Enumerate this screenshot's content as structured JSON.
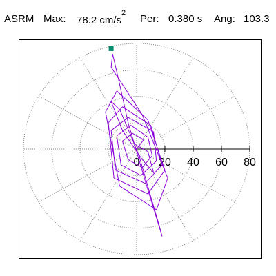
{
  "header": {
    "label": "ASRM",
    "max_label": "Max:",
    "max_value": "78.2 cm/s",
    "max_exp": "2",
    "per_label": "Per:",
    "per_value": "0.380 s",
    "ang_label": "Ang:",
    "ang_value": "103.3"
  },
  "chart_data": {
    "type": "scatter",
    "subtype": "polar-orbit",
    "title": "",
    "units": "cm/s2",
    "r_ticks": [
      0,
      20,
      40,
      60,
      80
    ],
    "r_tick_labels": [
      "0",
      "20",
      "40",
      "60",
      "80"
    ],
    "rmax": 80,
    "ring_count": 4,
    "spoke_count": 12,
    "grid": true,
    "colors": {
      "trace": "#8b00d8",
      "marker": "#009070",
      "grid": "#808080",
      "axis": "#000000"
    },
    "max_point": {
      "r": 78.2,
      "angle_deg": 103.3
    },
    "trace": [
      [
        0,
        0
      ],
      [
        5,
        7
      ],
      [
        -3,
        12
      ],
      [
        -10,
        6
      ],
      [
        -6,
        -8
      ],
      [
        4,
        -14
      ],
      [
        11,
        -5
      ],
      [
        8,
        9
      ],
      [
        -4,
        18
      ],
      [
        -14,
        10
      ],
      [
        -11,
        -12
      ],
      [
        3,
        -20
      ],
      [
        14,
        -9
      ],
      [
        12,
        13
      ],
      [
        -6,
        24
      ],
      [
        -18,
        14
      ],
      [
        -15,
        -16
      ],
      [
        6,
        -26
      ],
      [
        18,
        -12
      ],
      [
        10,
        18
      ],
      [
        -10,
        32
      ],
      [
        -20,
        20
      ],
      [
        -16,
        -22
      ],
      [
        8,
        -34
      ],
      [
        20,
        -16
      ],
      [
        8,
        22
      ],
      [
        -14,
        44
      ],
      [
        -22,
        28
      ],
      [
        -12,
        -28
      ],
      [
        14,
        -46
      ],
      [
        22,
        -22
      ],
      [
        4,
        26
      ],
      [
        -18,
        62
      ],
      [
        -17,
        72
      ],
      [
        -13,
        54
      ],
      [
        -6,
        20
      ],
      [
        6,
        -24
      ],
      [
        14,
        -52
      ],
      [
        18,
        -66
      ],
      [
        16,
        -58
      ],
      [
        10,
        -36
      ],
      [
        2,
        -6
      ],
      [
        -4,
        10
      ],
      [
        -12,
        30
      ],
      [
        -18,
        36
      ],
      [
        -10,
        14
      ],
      [
        4,
        -8
      ],
      [
        12,
        -18
      ],
      [
        8,
        -2
      ],
      [
        -2,
        4
      ]
    ]
  }
}
